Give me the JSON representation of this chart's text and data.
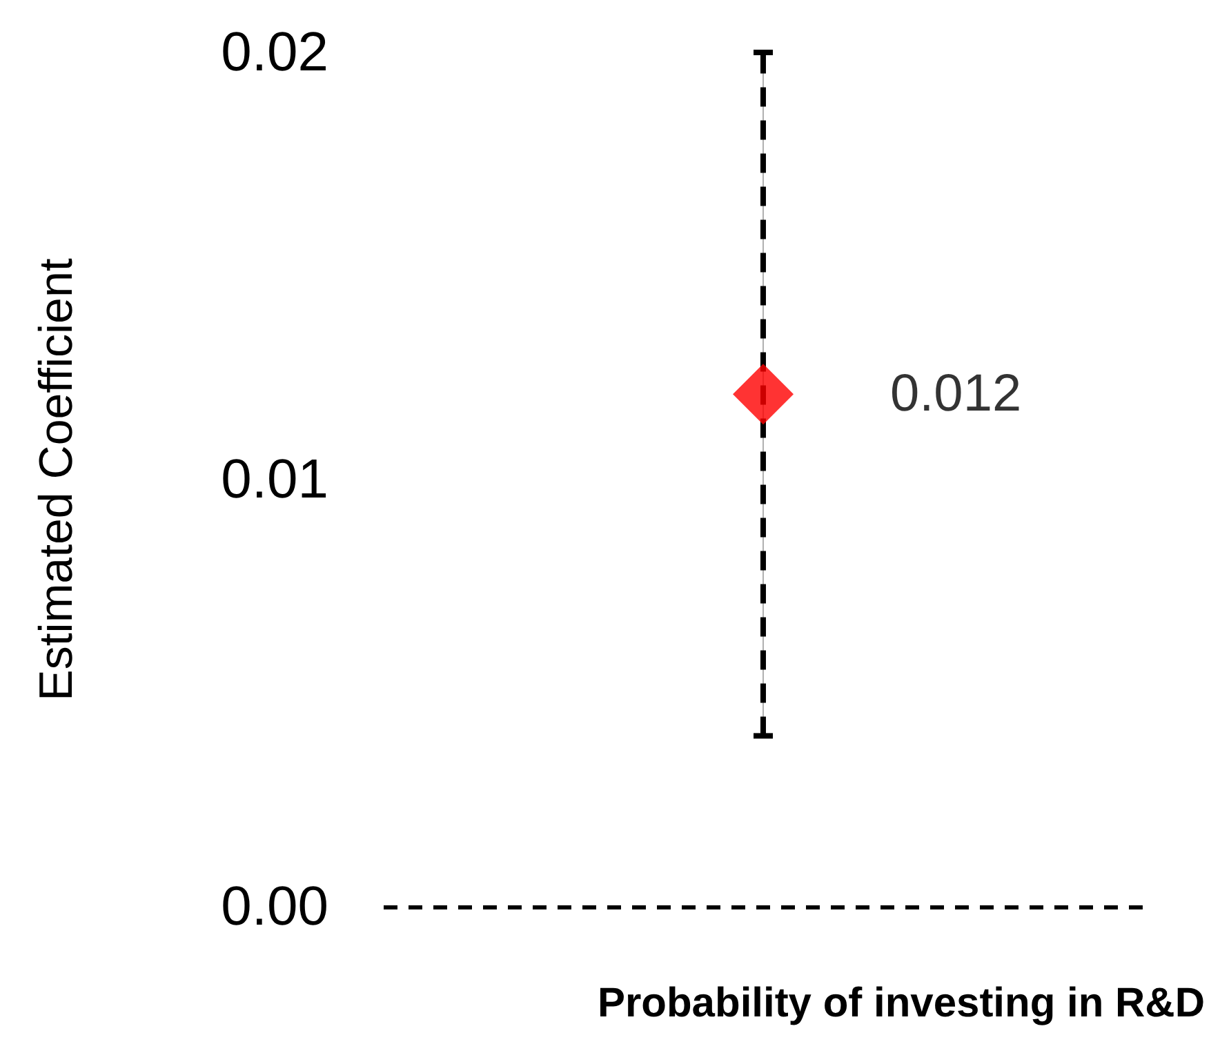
{
  "chart_data": {
    "type": "scatter",
    "xlabel": "Probability of investing in R&D",
    "ylabel": "Estimated Coefficient",
    "categories": [
      null
    ],
    "series": [
      {
        "color": "#ff0000",
        "values": [
          0.012
        ],
        "errors": [
          0.008
        ]
      }
    ],
    "ylim": [
      0,
      0.02
    ],
    "yticks": [
      {
        "value": 0,
        "label": "0.00"
      },
      0.01,
      0.02
    ],
    "ref_lines": [
      {
        "axis": "y",
        "value": 0,
        "color": "#000000",
        "line_style": "dashed"
      }
    ],
    "marker": "diamond",
    "data_labels": true,
    "grid": false
  }
}
